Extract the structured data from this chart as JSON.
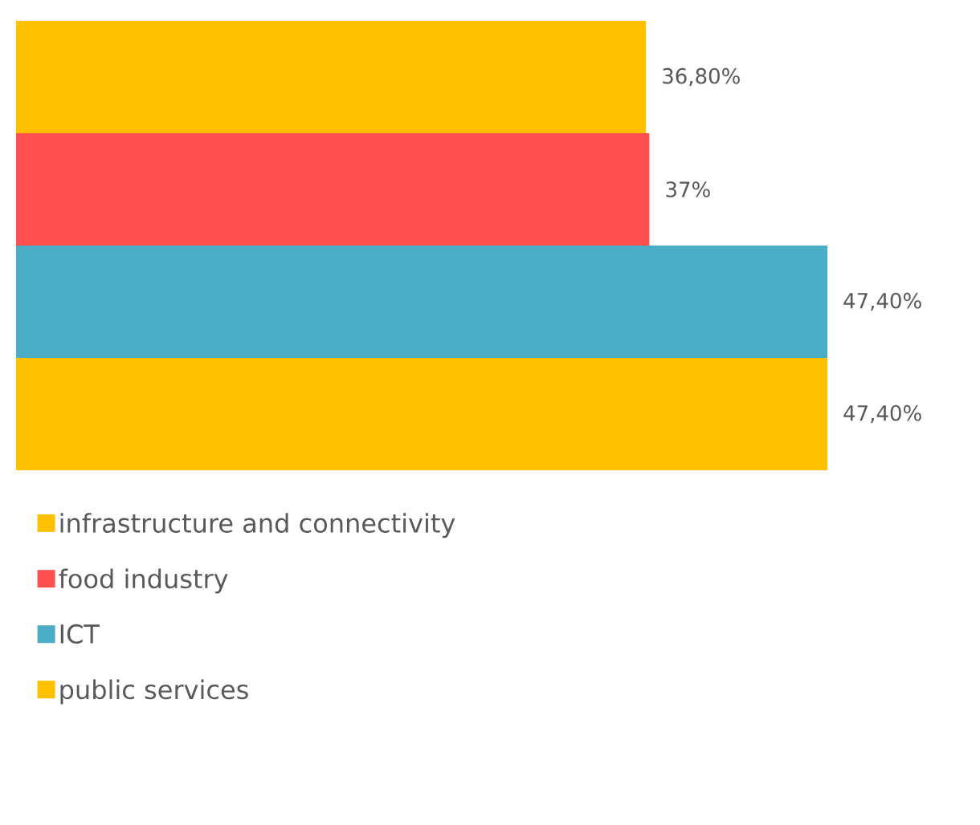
{
  "chart_data": {
    "type": "bar",
    "orientation": "horizontal",
    "categories": [
      null
    ],
    "legend": "bottom",
    "series": [
      {
        "name": "infrastructure and connectivity",
        "color": "#ffc000",
        "values": [
          36.8
        ],
        "value_labels": [
          "36,80%"
        ]
      },
      {
        "name": "food industry",
        "color": "#ff5050",
        "values": [
          37
        ],
        "value_labels": [
          "37%"
        ]
      },
      {
        "name": "ICT",
        "color": "#4bacc6",
        "values": [
          47.4
        ],
        "value_labels": [
          "47,40%"
        ]
      },
      {
        "name": "public services",
        "color": "#ffc000",
        "values": [
          47.4
        ],
        "value_labels": [
          "47,40%"
        ]
      }
    ]
  }
}
